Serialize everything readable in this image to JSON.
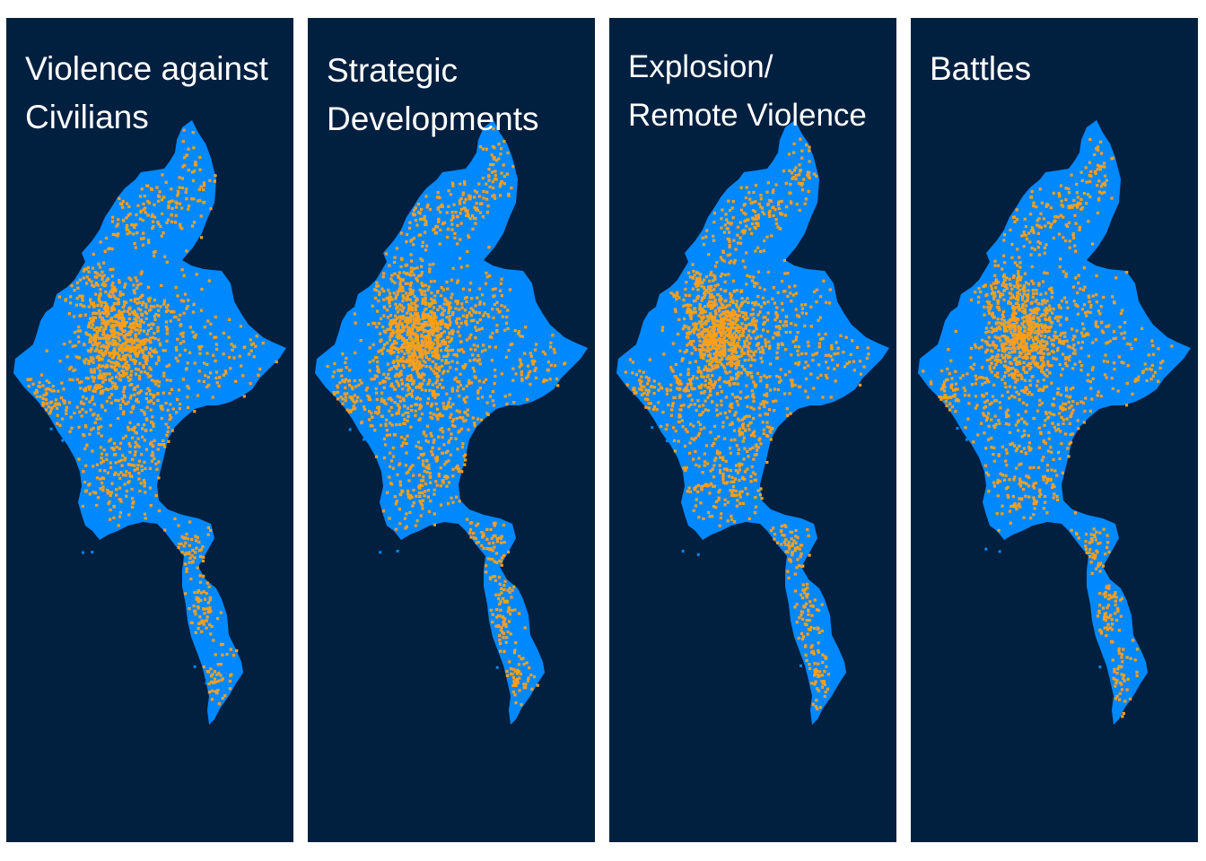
{
  "colors": {
    "background": "#ffffff",
    "panel_background": "#012040",
    "land": "#0088ff",
    "event_dots": "#ff9f1a",
    "title_text": "#ffffff"
  },
  "panels": [
    {
      "title": "Violence against\nCivilians",
      "event_type": "Violence against Civilians",
      "seed": 11,
      "density": 1.0
    },
    {
      "title": "Strategic\nDevelopments",
      "event_type": "Strategic Developments",
      "seed": 23,
      "density": 1.15
    },
    {
      "title": "Explosion/\nRemote Violence",
      "event_type": "Explosion/Remote Violence",
      "seed": 37,
      "density": 1.1
    },
    {
      "title": "Battles",
      "event_type": "Battles",
      "seed": 53,
      "density": 1.0
    }
  ]
}
